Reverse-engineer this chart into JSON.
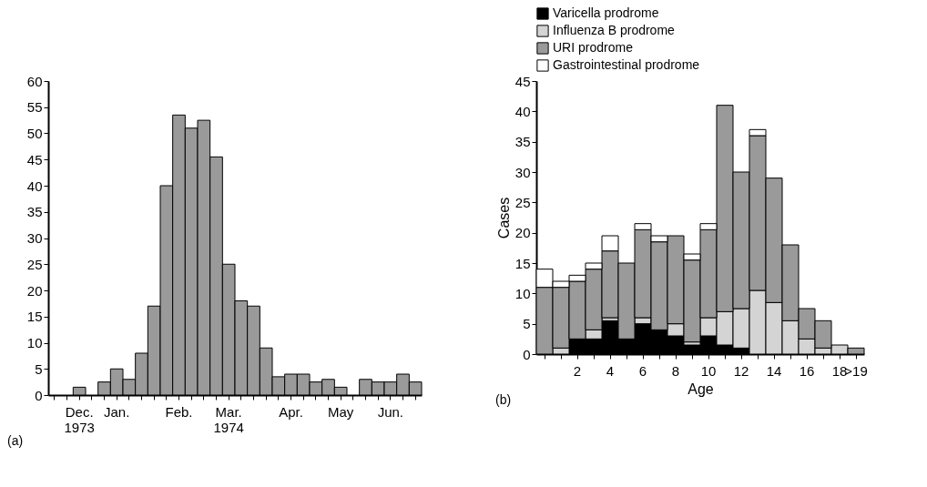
{
  "chart_data": [
    {
      "type": "bar",
      "categories": [
        null,
        null,
        "Dec.\n1973",
        null,
        null,
        "Jan.",
        null,
        null,
        null,
        null,
        "Feb.",
        null,
        null,
        null,
        "Mar.\n1974",
        null,
        null,
        null,
        null,
        "Apr.",
        null,
        null,
        null,
        "May",
        null,
        null,
        null,
        "Jun.",
        null,
        null
      ],
      "values": [
        0,
        0,
        1.5,
        0,
        2.5,
        5,
        3,
        8,
        17,
        40,
        53.5,
        51,
        52.5,
        45.5,
        25,
        18,
        17,
        9,
        3.5,
        4,
        4,
        2.5,
        3,
        1.5,
        0,
        3,
        2.5,
        2.5,
        4,
        2.5
      ],
      "color": "#9a9a9a",
      "ylim": [
        0,
        60
      ],
      "yticks": [
        0,
        5,
        10,
        15,
        20,
        25,
        30,
        35,
        40,
        45,
        50,
        55,
        60
      ],
      "annotations": [
        "(a)"
      ]
    },
    {
      "type": "bar",
      "stacked": true,
      "xlabel": "Age",
      "ylabel": "Cases",
      "legend": "top",
      "categories": [
        null,
        null,
        "2",
        null,
        "4",
        null,
        "6",
        null,
        "8",
        null,
        "10",
        null,
        "12",
        null,
        "14",
        null,
        "16",
        null,
        "18",
        ">19"
      ],
      "series": [
        {
          "name": "Varicella prodrome",
          "color": "#000000",
          "values": [
            0,
            0,
            2.5,
            2.5,
            5.5,
            2.5,
            5,
            4,
            3,
            1.5,
            3,
            1.5,
            1,
            0,
            0,
            0,
            0,
            0,
            0,
            0
          ]
        },
        {
          "name": "Influenza B prodrome",
          "color": "#d4d4d4",
          "values": [
            0,
            1,
            0,
            1.5,
            0.5,
            0,
            1,
            0,
            2,
            0.5,
            3,
            5.5,
            6.5,
            10.5,
            8.5,
            5.5,
            2.5,
            1,
            1.5,
            0
          ]
        },
        {
          "name": "URI prodrome",
          "color": "#9a9a9a",
          "values": [
            11,
            10,
            9.5,
            10,
            11,
            12.5,
            14.5,
            14.5,
            14.5,
            13.5,
            14.5,
            34,
            22.5,
            25.5,
            20.5,
            12.5,
            5,
            4.5,
            0,
            1
          ]
        },
        {
          "name": "Gastrointestinal prodrome",
          "color": "#ffffff",
          "values": [
            3,
            1,
            1,
            1,
            2.5,
            0,
            1,
            1,
            0,
            1,
            1,
            0,
            0,
            1,
            0,
            0,
            0,
            0,
            0,
            0
          ]
        }
      ],
      "ylim": [
        0,
        45
      ],
      "yticks": [
        0,
        5,
        10,
        15,
        20,
        25,
        30,
        35,
        40,
        45
      ],
      "annotations": [
        "(b)"
      ]
    }
  ]
}
